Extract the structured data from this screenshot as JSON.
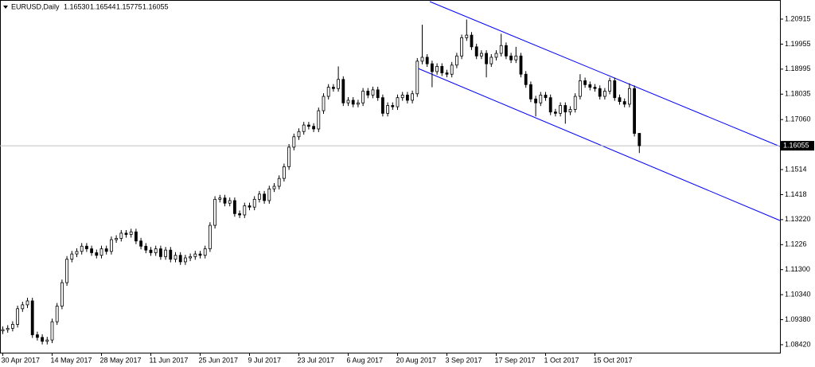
{
  "chart_data": {
    "type": "candlestick",
    "title": "EURUSD,Daily",
    "title_values": [
      "1.16530",
      "1.16544",
      "1.15775",
      "1.16055"
    ],
    "current_price": 1.16055,
    "categories": [
      "30 Apr 2017",
      null,
      null,
      null,
      null,
      null,
      null,
      null,
      null,
      null,
      "14 May 2017",
      null,
      null,
      null,
      null,
      null,
      null,
      null,
      null,
      null,
      "28 May 2017",
      null,
      null,
      null,
      null,
      null,
      null,
      null,
      null,
      null,
      "11 Jun 2017",
      null,
      null,
      null,
      null,
      null,
      null,
      null,
      null,
      null,
      "25 Jun 2017",
      null,
      null,
      null,
      null,
      null,
      null,
      null,
      null,
      null,
      "9 Jul 2017",
      null,
      null,
      null,
      null,
      null,
      null,
      null,
      null,
      null,
      "23 Jul 2017",
      null,
      null,
      null,
      null,
      null,
      null,
      null,
      null,
      null,
      "6 Aug 2017",
      null,
      null,
      null,
      null,
      null,
      null,
      null,
      null,
      null,
      "20 Aug 2017",
      null,
      null,
      null,
      null,
      null,
      null,
      null,
      null,
      null,
      "3 Sep 2017",
      null,
      null,
      null,
      null,
      null,
      null,
      null,
      null,
      null,
      "17 Sep 2017",
      null,
      null,
      null,
      null,
      null,
      null,
      null,
      null,
      null,
      "1 Oct 2017",
      null,
      null,
      null,
      null,
      null,
      null,
      null,
      null,
      null,
      "15 Oct 2017",
      null,
      null,
      null,
      null,
      null,
      null,
      null,
      null,
      null
    ],
    "open": [
      1.0895,
      1.09,
      1.0905,
      1.092,
      1.098,
      1.0995,
      1.101,
      1.088,
      1.087,
      1.0855,
      1.086,
      1.093,
      1.099,
      1.108,
      1.117,
      1.119,
      1.12,
      1.122,
      1.121,
      1.1195,
      1.1185,
      1.121,
      1.12,
      1.1245,
      1.125,
      1.127,
      1.1265,
      1.1275,
      1.124,
      1.122,
      1.1205,
      1.1195,
      1.121,
      1.118,
      1.1205,
      1.117,
      1.1185,
      1.116,
      1.1175,
      1.118,
      1.119,
      1.1185,
      1.121,
      1.13,
      1.14,
      1.1405,
      1.1385,
      1.1395,
      1.1345,
      1.134,
      1.1375,
      1.137,
      1.14,
      1.142,
      1.1395,
      1.144,
      1.145,
      1.148,
      1.1525,
      1.16,
      1.164,
      1.166,
      1.1685,
      1.168,
      1.167,
      1.174,
      1.1795,
      1.183,
      1.1825,
      1.186,
      1.177,
      1.178,
      1.1765,
      1.177,
      1.1815,
      1.18,
      1.182,
      1.179,
      1.173,
      1.176,
      1.1755,
      1.179,
      1.18,
      1.178,
      1.1805,
      1.193,
      1.1945,
      1.192,
      1.189,
      1.191,
      1.1885,
      1.188,
      1.1915,
      1.195,
      1.202,
      1.203,
      1.1985,
      1.195,
      1.196,
      1.192,
      1.1945,
      1.196,
      1.199,
      1.195,
      1.1935,
      1.195,
      1.188,
      1.184,
      1.1785,
      1.177,
      1.18,
      1.179,
      1.1735,
      1.173,
      1.176,
      1.1735,
      1.1745,
      1.1795,
      1.1855,
      1.184,
      1.183,
      1.1825,
      1.1795,
      1.1815,
      1.1855,
      1.179,
      1.1775,
      1.1765,
      1.1825,
      1.1653
    ],
    "high": [
      1.0912,
      1.0917,
      1.0932,
      1.0992,
      1.1007,
      1.1022,
      1.1022,
      1.0892,
      1.0882,
      1.0872,
      1.0942,
      1.1002,
      1.1092,
      1.1182,
      1.1202,
      1.1212,
      1.1232,
      1.1232,
      1.1222,
      1.1207,
      1.1222,
      1.1222,
      1.1257,
      1.1262,
      1.1282,
      1.1282,
      1.1287,
      1.1287,
      1.1252,
      1.1232,
      1.1217,
      1.1222,
      1.1222,
      1.1217,
      1.1217,
      1.1197,
      1.1197,
      1.1187,
      1.1192,
      1.1202,
      1.1202,
      1.1222,
      1.1312,
      1.1412,
      1.1417,
      1.1417,
      1.1407,
      1.1407,
      1.1357,
      1.1387,
      1.1387,
      1.1412,
      1.1432,
      1.1432,
      1.1452,
      1.1462,
      1.1492,
      1.1537,
      1.1612,
      1.1652,
      1.1672,
      1.1697,
      1.1697,
      1.1692,
      1.1752,
      1.1807,
      1.1842,
      1.1842,
      1.191,
      1.1872,
      1.1792,
      1.1792,
      1.1782,
      1.1827,
      1.1827,
      1.1832,
      1.1832,
      1.1802,
      1.1772,
      1.1772,
      1.1802,
      1.1812,
      1.1812,
      1.1817,
      1.1942,
      1.207,
      1.1957,
      1.1932,
      1.1922,
      1.1922,
      1.1897,
      1.1927,
      1.1962,
      1.2032,
      1.209,
      1.2042,
      1.1997,
      1.1972,
      1.1972,
      1.1957,
      1.1972,
      1.2035,
      1.2002,
      1.1962,
      1.1985,
      1.1962,
      1.1892,
      1.1852,
      1.1797,
      1.1812,
      1.1812,
      1.1802,
      1.1747,
      1.1772,
      1.1772,
      1.1757,
      1.1807,
      1.188,
      1.1867,
      1.1852,
      1.1842,
      1.1837,
      1.1827,
      1.1867,
      1.1867,
      1.1802,
      1.1787,
      1.1845,
      1.1837,
      1.16544
    ],
    "low": [
      1.0883,
      1.0888,
      1.0893,
      1.0908,
      1.0968,
      1.0983,
      1.0868,
      1.0858,
      1.0843,
      1.0843,
      1.0848,
      1.0918,
      1.0978,
      1.1068,
      1.1158,
      1.1178,
      1.1188,
      1.1198,
      1.1183,
      1.1173,
      1.1173,
      1.1188,
      1.1188,
      1.1233,
      1.1238,
      1.1253,
      1.1253,
      1.1228,
      1.1208,
      1.1193,
      1.1183,
      1.1183,
      1.1168,
      1.1168,
      1.1158,
      1.1158,
      1.1148,
      1.1148,
      1.1163,
      1.1168,
      1.1173,
      1.1173,
      1.1198,
      1.1288,
      1.1388,
      1.1373,
      1.1373,
      1.1333,
      1.1328,
      1.1328,
      1.1358,
      1.1358,
      1.1388,
      1.1383,
      1.1383,
      1.1428,
      1.1438,
      1.1468,
      1.1513,
      1.1588,
      1.1628,
      1.1648,
      1.1668,
      1.1658,
      1.1658,
      1.1728,
      1.1783,
      1.1813,
      1.1813,
      1.1758,
      1.1758,
      1.1753,
      1.1753,
      1.1758,
      1.1788,
      1.1788,
      1.1778,
      1.1718,
      1.1718,
      1.1743,
      1.1743,
      1.1778,
      1.1768,
      1.1768,
      1.1793,
      1.1918,
      1.1908,
      1.183,
      1.1878,
      1.1873,
      1.1868,
      1.1868,
      1.1903,
      1.1938,
      1.2008,
      1.1973,
      1.1938,
      1.1938,
      1.1868,
      1.1908,
      1.1933,
      1.1948,
      1.1938,
      1.1923,
      1.1923,
      1.1868,
      1.1828,
      1.1773,
      1.1718,
      1.1758,
      1.1778,
      1.1723,
      1.1718,
      1.1718,
      1.169,
      1.1723,
      1.1733,
      1.1783,
      1.1828,
      1.1818,
      1.1813,
      1.1783,
      1.1783,
      1.1803,
      1.1778,
      1.1763,
      1.1753,
      1.1753,
      1.1641,
      1.15775
    ],
    "close": [
      1.09,
      1.0905,
      1.092,
      1.098,
      1.0995,
      1.101,
      1.088,
      1.087,
      1.0855,
      1.086,
      1.093,
      1.099,
      1.108,
      1.117,
      1.119,
      1.12,
      1.122,
      1.121,
      1.1195,
      1.1185,
      1.121,
      1.12,
      1.1245,
      1.125,
      1.127,
      1.1265,
      1.1275,
      1.124,
      1.122,
      1.1205,
      1.1195,
      1.121,
      1.118,
      1.1205,
      1.117,
      1.1185,
      1.116,
      1.1175,
      1.118,
      1.119,
      1.1185,
      1.121,
      1.13,
      1.14,
      1.1405,
      1.1385,
      1.1395,
      1.1345,
      1.134,
      1.1375,
      1.137,
      1.14,
      1.142,
      1.1395,
      1.144,
      1.145,
      1.148,
      1.1525,
      1.16,
      1.164,
      1.166,
      1.1685,
      1.168,
      1.167,
      1.174,
      1.1795,
      1.183,
      1.1825,
      1.186,
      1.177,
      1.178,
      1.1765,
      1.177,
      1.1815,
      1.18,
      1.182,
      1.179,
      1.173,
      1.176,
      1.1755,
      1.179,
      1.18,
      1.178,
      1.1805,
      1.193,
      1.1945,
      1.192,
      1.189,
      1.191,
      1.1885,
      1.188,
      1.1915,
      1.195,
      1.202,
      1.203,
      1.1985,
      1.195,
      1.196,
      1.192,
      1.1945,
      1.196,
      1.199,
      1.195,
      1.1935,
      1.195,
      1.188,
      1.184,
      1.1785,
      1.177,
      1.18,
      1.179,
      1.1735,
      1.173,
      1.176,
      1.1735,
      1.1745,
      1.1795,
      1.1855,
      1.184,
      1.183,
      1.1825,
      1.1795,
      1.1815,
      1.1855,
      1.179,
      1.1775,
      1.1765,
      1.1825,
      1.1653,
      1.16055
    ],
    "ylim": [
      1.08114,
      1.21587
    ],
    "yticks": [
      1.20915,
      1.19955,
      1.18995,
      1.18035,
      {
        "value": 1.1706,
        "label": "1.17060"
      },
      1.1514,
      1.1418,
      {
        "value": 1.1322,
        "label": "1.13220"
      },
      1.1226,
      {
        "value": 1.113,
        "label": "1.11300"
      },
      {
        "value": 1.1034,
        "label": "1.10340"
      },
      {
        "value": 1.0938,
        "label": "1.09380"
      },
      {
        "value": 1.0842,
        "label": "1.08420"
      }
    ],
    "colors": {
      "up": "#ffffff",
      "down": "#000000",
      "outline": "#000000",
      "price_line": "#c0c0c0"
    }
  }
}
